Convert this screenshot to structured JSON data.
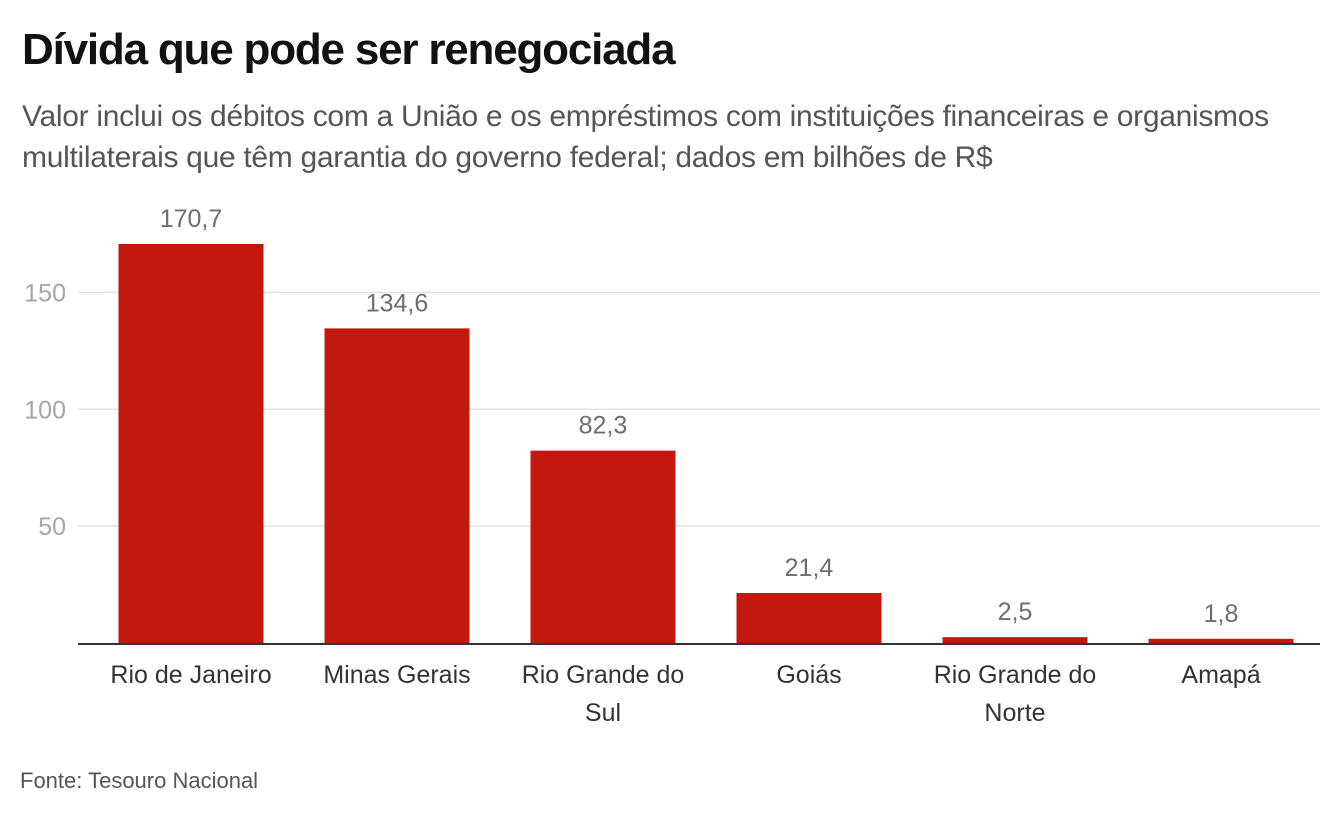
{
  "header": {
    "title": "Dívida que pode ser renegociada",
    "subtitle": "Valor inclui os débitos com a União e os empréstimos com instituições financeiras e organismos multilaterais que têm garantia do governo federal; dados em bilhões de R$"
  },
  "footer": {
    "source": "Fonte: Tesouro Nacional"
  },
  "colors": {
    "bar": "#c3180e",
    "grid": "#e3e3e3",
    "axis": "#333333"
  },
  "chart_data": {
    "type": "bar",
    "categories": [
      [
        "Rio de Janeiro"
      ],
      [
        "Minas Gerais"
      ],
      [
        "Rio Grande do",
        "Sul"
      ],
      [
        "Goiás"
      ],
      [
        "Rio Grande do",
        "Norte"
      ],
      [
        "Amapá"
      ]
    ],
    "values": [
      170.7,
      134.6,
      82.3,
      21.4,
      2.5,
      1.8
    ],
    "value_labels": [
      "170,7",
      "134,6",
      "82,3",
      "21,4",
      "2,5",
      "1,8"
    ],
    "yticks": [
      50,
      100,
      150
    ],
    "ylim": [
      0,
      170.7
    ],
    "grid": true,
    "legend": "none"
  }
}
